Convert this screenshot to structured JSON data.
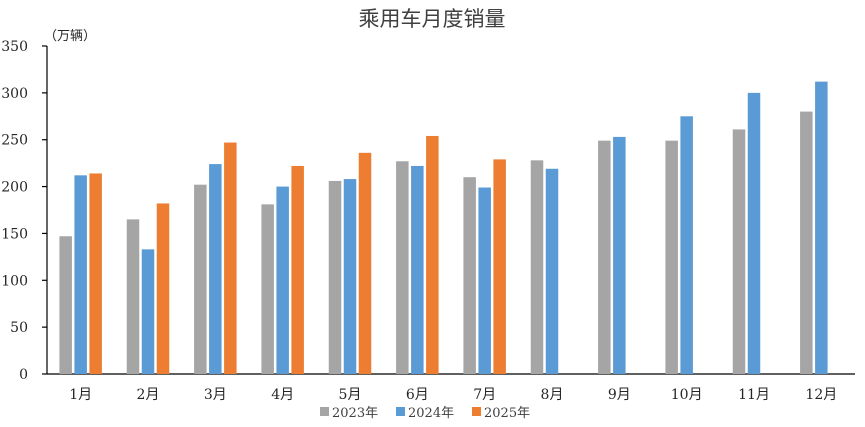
{
  "chart_data": {
    "type": "bar",
    "title": "乘用车月度销量",
    "ylabel": "（万辆）",
    "xlabel": "",
    "ylim": [
      0,
      350
    ],
    "yticks": [
      0,
      50,
      100,
      150,
      200,
      250,
      300,
      350
    ],
    "grid": false,
    "legend": "bottom",
    "categories": [
      "1月",
      "2月",
      "3月",
      "4月",
      "5月",
      "6月",
      "7月",
      "8月",
      "9月",
      "10月",
      "11月",
      "12月"
    ],
    "series": [
      {
        "name": "2023年",
        "color": "#a5a5a5",
        "values": [
          147,
          165,
          202,
          181,
          206,
          227,
          210,
          228,
          249,
          249,
          261,
          280
        ]
      },
      {
        "name": "2024年",
        "color": "#5b9bd5",
        "values": [
          212,
          133,
          224,
          200,
          208,
          222,
          199,
          219,
          253,
          275,
          300,
          312
        ]
      },
      {
        "name": "2025年",
        "color": "#ed7d31",
        "values": [
          214,
          182,
          247,
          222,
          236,
          254,
          229,
          null,
          null,
          null,
          null,
          null
        ]
      }
    ]
  }
}
